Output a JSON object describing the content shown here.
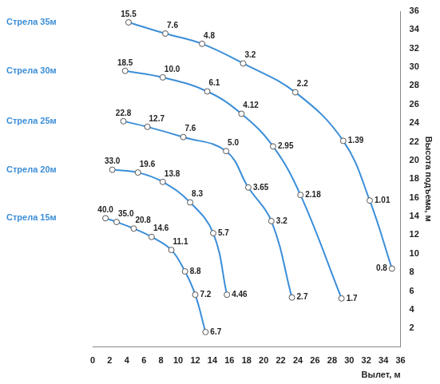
{
  "chart_data": {
    "type": "line",
    "x_label": "Вылет, м",
    "y_label": "Высота подъема, м",
    "xlim": [
      0,
      36
    ],
    "xticks": [
      0,
      2,
      4,
      6,
      8,
      10,
      12,
      14,
      16,
      18,
      20,
      22,
      24,
      26,
      28,
      30,
      32,
      34,
      36
    ],
    "ylim": [
      0,
      36
    ],
    "yticks": [
      2,
      4,
      6,
      8,
      10,
      12,
      14,
      16,
      18,
      20,
      22,
      24,
      26,
      28,
      30,
      32,
      34,
      36
    ],
    "grid": false,
    "marker": "circle",
    "series": [
      {
        "name": "Стрела 35м",
        "color": "#3b8ed8",
        "x": [
          4.2,
          8.5,
          12.8,
          17.6,
          23.7,
          29.3,
          32.4,
          35.0
        ],
        "values": [
          34.8,
          33.6,
          32.5,
          30.4,
          27.3,
          22.1,
          15.7,
          8.4
        ],
        "loads": [
          15.5,
          7.6,
          4.8,
          3.2,
          2.2,
          1.39,
          1.01,
          0.8
        ],
        "load_labels": [
          "15.5",
          "7.6",
          "4.8",
          "3.2",
          "2.2",
          "1.39",
          "1.01",
          "0.8"
        ]
      },
      {
        "name": "Стрела 30м",
        "color": "#3b8ed8",
        "x": [
          3.8,
          8.2,
          13.4,
          17.4,
          21.1,
          24.3,
          29.1
        ],
        "values": [
          29.6,
          28.9,
          27.4,
          25.0,
          21.5,
          16.3,
          5.2
        ],
        "loads": [
          18.5,
          10.0,
          6.1,
          4.12,
          2.95,
          2.18,
          1.7
        ],
        "load_labels": [
          "18.5",
          "10.0",
          "6.1",
          "4.12",
          "2.95",
          "2.18",
          "1.7"
        ]
      },
      {
        "name": "Стрела 25м",
        "color": "#3b8ed8",
        "x": [
          3.6,
          6.4,
          10.6,
          15.6,
          18.2,
          20.9,
          23.3
        ],
        "values": [
          24.2,
          23.6,
          22.5,
          21.0,
          17.1,
          13.5,
          5.3
        ],
        "loads": [
          22.8,
          12.7,
          7.6,
          5.0,
          3.65,
          3.2,
          2.7
        ],
        "load_labels": [
          "22.8",
          "12.7",
          "7.6",
          "5.0",
          "3.65",
          "3.2",
          "2.7"
        ]
      },
      {
        "name": "Стрела 20м",
        "color": "#3b8ed8",
        "x": [
          2.3,
          5.3,
          8.2,
          11.4,
          14.1,
          15.7
        ],
        "values": [
          19.0,
          18.7,
          17.7,
          15.5,
          12.2,
          5.6
        ],
        "loads": [
          33.0,
          19.6,
          13.8,
          8.3,
          5.7,
          4.46
        ],
        "load_labels": [
          "33.0",
          "19.6",
          "13.8",
          "8.3",
          "5.7",
          "4.46"
        ]
      },
      {
        "name": "Стрела 15м",
        "color": "#3b8ed8",
        "x": [
          1.5,
          2.8,
          4.8,
          6.9,
          9.2,
          10.8,
          12.0,
          13.2
        ],
        "values": [
          13.8,
          13.4,
          12.7,
          11.8,
          10.4,
          8.1,
          5.6,
          1.6
        ],
        "loads": [
          40.0,
          35.0,
          20.8,
          14.6,
          11.1,
          8.8,
          7.2,
          6.7
        ],
        "load_labels": [
          "40.0",
          "35.0",
          "20.8",
          "14.6",
          "11.1",
          "8.8",
          "7.2",
          "6.7"
        ]
      }
    ]
  }
}
